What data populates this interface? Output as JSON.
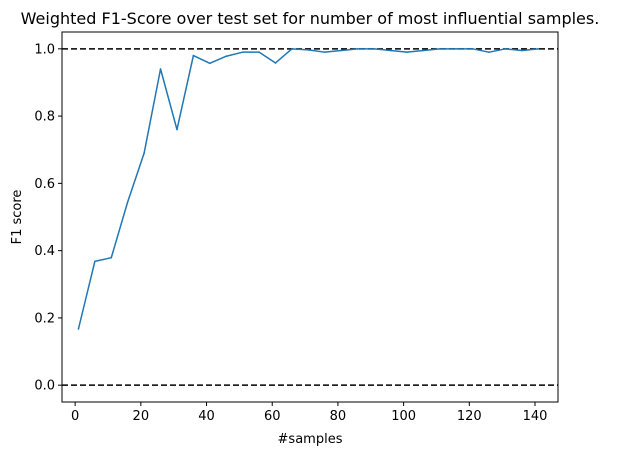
{
  "chart_data": {
    "type": "line",
    "title": "Weighted F1-Score over test set for number of most influential samples.",
    "xlabel": "#samples",
    "ylabel": "F1 score",
    "xlim": [
      -4,
      147
    ],
    "ylim": [
      -0.05,
      1.05
    ],
    "xticks": [
      0,
      20,
      40,
      60,
      80,
      100,
      120,
      140
    ],
    "xtick_labels": [
      "0",
      "20",
      "40",
      "60",
      "80",
      "100",
      "120",
      "140"
    ],
    "yticks": [
      0.0,
      0.2,
      0.4,
      0.6,
      0.8,
      1.0
    ],
    "ytick_labels": [
      "0.0",
      "0.2",
      "0.4",
      "0.6",
      "0.8",
      "1.0"
    ],
    "grid": false,
    "reference_lines": [
      {
        "y": 1.0,
        "style": "dashed",
        "color": "#000000"
      },
      {
        "y": 0.0,
        "style": "dashed",
        "color": "#000000"
      }
    ],
    "series": [
      {
        "color": "#1f77b4",
        "x": [
          1,
          6,
          11,
          16,
          21,
          26,
          31,
          36,
          41,
          46,
          51,
          56,
          61,
          66,
          71,
          76,
          81,
          86,
          91,
          96,
          101,
          106,
          111,
          116,
          121,
          126,
          131,
          136,
          141
        ],
        "y": [
          0.167,
          0.368,
          0.379,
          0.545,
          0.69,
          0.94,
          0.76,
          0.98,
          0.957,
          0.978,
          0.99,
          0.99,
          0.958,
          1.0,
          0.997,
          0.99,
          0.995,
          1.0,
          1.0,
          0.995,
          0.99,
          0.995,
          1.0,
          1.0,
          1.0,
          0.99,
          1.0,
          0.995,
          1.0
        ]
      }
    ]
  }
}
